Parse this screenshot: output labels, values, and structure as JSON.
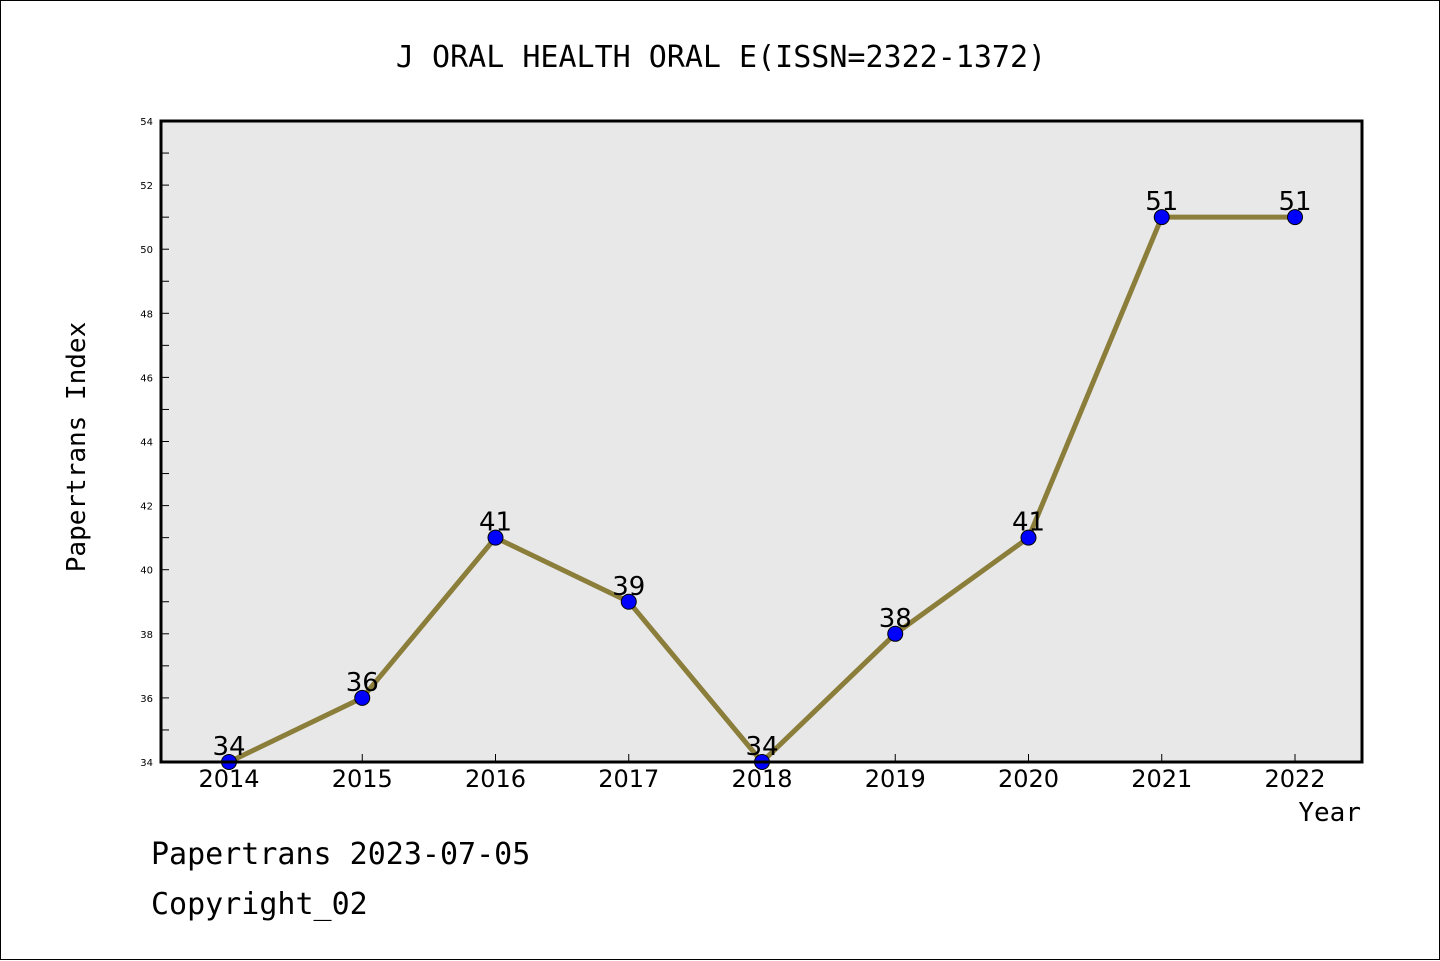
{
  "chart_data": {
    "type": "line",
    "title": "J ORAL HEALTH ORAL E(ISSN=2322-1372)",
    "xlabel": "Year",
    "ylabel": "Papertrans Index",
    "categories": [
      "2014",
      "2015",
      "2016",
      "2017",
      "2018",
      "2019",
      "2020",
      "2021",
      "2022"
    ],
    "series": [
      {
        "values": [
          34,
          36,
          41,
          39,
          34,
          38,
          41,
          51,
          51
        ],
        "data_labels": [
          "34",
          "36",
          "41",
          "39",
          "34",
          "38",
          "41",
          "51",
          "51"
        ]
      }
    ],
    "ylim": [
      34,
      54
    ],
    "yticks": [
      "34",
      "36",
      "38",
      "40",
      "42",
      "44",
      "46",
      "48",
      "50",
      "52",
      "54"
    ],
    "grid": false,
    "legend": "none",
    "colors": {
      "line": "#8b7d3a",
      "marker": "#0000ff",
      "plot_background": "#e8e8e8"
    }
  },
  "footer": {
    "line1": "Papertrans 2023-07-05",
    "line2": "Copyright_02"
  }
}
